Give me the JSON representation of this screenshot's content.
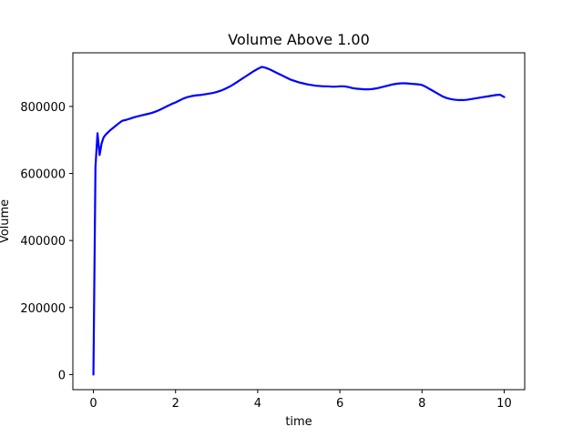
{
  "chart_data": {
    "type": "line",
    "title": "Volume Above 1.00",
    "xlabel": "time",
    "ylabel": "Volume",
    "xlim": [
      -0.5,
      10.5
    ],
    "ylim": [
      -45000,
      960000
    ],
    "x_ticks": [
      0,
      2,
      4,
      6,
      8,
      10
    ],
    "x_tick_labels": [
      "0",
      "2",
      "4",
      "6",
      "8",
      "10"
    ],
    "y_ticks": [
      0,
      200000,
      400000,
      600000,
      800000
    ],
    "y_tick_labels": [
      "0",
      "200000",
      "400000",
      "600000",
      "800000"
    ],
    "grid": false,
    "legend": "none",
    "series": [
      {
        "color": "#0000ff",
        "x": [
          0,
          0.05,
          0.1,
          0.15,
          0.2,
          0.25,
          0.3,
          0.4,
          0.5,
          0.6,
          0.7,
          0.8,
          0.9,
          1.0,
          1.1,
          1.2,
          1.3,
          1.4,
          1.5,
          1.6,
          1.7,
          1.8,
          1.9,
          2.0,
          2.1,
          2.2,
          2.3,
          2.4,
          2.5,
          2.6,
          2.7,
          2.8,
          2.9,
          3.0,
          3.1,
          3.2,
          3.3,
          3.4,
          3.5,
          3.6,
          3.7,
          3.8,
          3.9,
          4.0,
          4.1,
          4.2,
          4.3,
          4.4,
          4.5,
          4.6,
          4.7,
          4.8,
          4.9,
          5.0,
          5.1,
          5.2,
          5.3,
          5.4,
          5.5,
          5.6,
          5.7,
          5.8,
          5.9,
          6.0,
          6.1,
          6.2,
          6.3,
          6.4,
          6.5,
          6.6,
          6.7,
          6.8,
          6.9,
          7.0,
          7.1,
          7.2,
          7.3,
          7.4,
          7.5,
          7.6,
          7.7,
          7.8,
          7.9,
          8.0,
          8.1,
          8.2,
          8.3,
          8.4,
          8.5,
          8.6,
          8.7,
          8.8,
          8.9,
          9.0,
          9.1,
          9.2,
          9.3,
          9.4,
          9.5,
          9.6,
          9.7,
          9.8,
          9.9,
          10.0
        ],
        "y": [
          0,
          620000,
          720000,
          655000,
          690000,
          708000,
          716000,
          728000,
          738000,
          748000,
          757000,
          760000,
          764000,
          768000,
          771000,
          774000,
          777000,
          780000,
          784000,
          789000,
          795000,
          801000,
          807000,
          812000,
          818000,
          824000,
          828000,
          831000,
          833000,
          834000,
          836000,
          838000,
          840000,
          843000,
          847000,
          852000,
          858000,
          865000,
          873000,
          881000,
          889000,
          897000,
          905000,
          912000,
          918000,
          915000,
          910000,
          904000,
          898000,
          892000,
          886000,
          880000,
          876000,
          872000,
          869000,
          866000,
          864000,
          862000,
          861000,
          860000,
          860000,
          859000,
          859000,
          860000,
          860000,
          858000,
          855000,
          853000,
          852000,
          851000,
          851000,
          852000,
          854000,
          857000,
          860000,
          863000,
          866000,
          868000,
          869000,
          869000,
          868000,
          867000,
          866000,
          864000,
          858000,
          851000,
          844000,
          837000,
          830000,
          825000,
          822000,
          820000,
          819000,
          819000,
          820000,
          822000,
          824000,
          826000,
          828000,
          830000,
          832000,
          834000,
          835000,
          828000
        ]
      }
    ]
  }
}
